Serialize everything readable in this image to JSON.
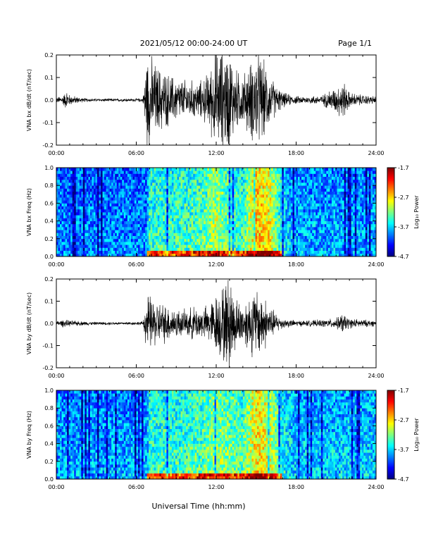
{
  "header": {
    "title": "2021/05/12  00:00-24:00 UT",
    "page": "Page 1/1"
  },
  "xlabel": "Universal Time (hh:mm)",
  "x_ticks": [
    "00:00",
    "06:00",
    "12:00",
    "18:00",
    "24:00"
  ],
  "colorbar": {
    "label": "Log₁₀ Power",
    "ticks": [
      "-1.7",
      "-2.7",
      "-3.7",
      "-4.7"
    ],
    "range": [
      -4.7,
      -1.7
    ]
  },
  "colors": {
    "trace": "#000000",
    "axis": "#000000"
  },
  "chart_data": [
    {
      "type": "line",
      "title": "",
      "ylabel": "VNA bx dB/dt (nT/sec)",
      "xlim": [
        0,
        24
      ],
      "ylim": [
        -0.2,
        0.2
      ],
      "y_ticks": [
        "-0.2",
        "-0.1",
        "0.0",
        "0.1",
        "0.2"
      ],
      "series": [
        {
          "x": [
            0,
            0.5,
            0.8,
            1.0,
            2.0,
            3.0,
            4.0,
            5.0,
            6.0,
            6.5,
            6.8,
            7.0,
            7.5,
            8.0,
            8.5,
            9.0,
            9.5,
            10.0,
            10.5,
            11.0,
            11.5,
            12.0,
            12.5,
            13.0,
            13.5,
            14.0,
            14.5,
            15.0,
            15.5,
            16.0,
            16.5,
            17.0,
            18.0,
            19.0,
            20.0,
            20.5,
            21.0,
            21.5,
            22.0,
            23.0,
            24.0
          ],
          "amplitude": [
            0.01,
            0.02,
            0.04,
            0.02,
            0.008,
            0.006,
            0.006,
            0.006,
            0.006,
            0.008,
            0.2,
            0.18,
            0.14,
            0.12,
            0.1,
            0.09,
            0.08,
            0.08,
            0.07,
            0.08,
            0.12,
            0.2,
            0.2,
            0.2,
            0.12,
            0.1,
            0.14,
            0.2,
            0.16,
            0.1,
            0.06,
            0.03,
            0.015,
            0.015,
            0.02,
            0.04,
            0.05,
            0.08,
            0.03,
            0.02,
            0.015
          ]
        }
      ]
    },
    {
      "type": "heatmap",
      "title": "",
      "ylabel": "VNA bx Freq (Hz)",
      "xlim": [
        0,
        24
      ],
      "ylim": [
        0,
        1.0
      ],
      "y_ticks": [
        "0.0",
        "0.2",
        "0.4",
        "0.6",
        "0.8",
        "1.0"
      ],
      "activity": {
        "x": [
          0,
          6.8,
          7.0,
          9.0,
          11.0,
          12.0,
          13.0,
          14.0,
          15.0,
          16.0,
          17.0,
          18.0,
          24.0
        ],
        "level": [
          -3.9,
          -3.9,
          -3.4,
          -3.4,
          -3.3,
          -3.0,
          -3.3,
          -3.4,
          -2.6,
          -2.8,
          -3.6,
          -3.8,
          -3.8
        ]
      }
    },
    {
      "type": "line",
      "title": "",
      "ylabel": "VNA by dB/dt (nT/sec)",
      "xlim": [
        0,
        24
      ],
      "ylim": [
        -0.2,
        0.2
      ],
      "y_ticks": [
        "-0.2",
        "-0.1",
        "0.0",
        "0.1",
        "0.2"
      ],
      "series": [
        {
          "x": [
            0,
            0.5,
            1.0,
            2.0,
            3.0,
            4.0,
            5.0,
            6.0,
            6.5,
            6.8,
            7.0,
            7.5,
            8.0,
            8.5,
            9.0,
            9.5,
            10.0,
            10.5,
            11.0,
            11.5,
            12.0,
            12.5,
            13.0,
            13.5,
            14.0,
            14.5,
            15.0,
            15.5,
            16.0,
            16.5,
            17.0,
            18.0,
            19.0,
            20.0,
            21.0,
            21.5,
            22.0,
            23.0,
            24.0
          ],
          "amplitude": [
            0.01,
            0.015,
            0.012,
            0.008,
            0.006,
            0.006,
            0.006,
            0.006,
            0.008,
            0.12,
            0.11,
            0.09,
            0.08,
            0.07,
            0.06,
            0.05,
            0.06,
            0.07,
            0.06,
            0.08,
            0.12,
            0.15,
            0.2,
            0.1,
            0.08,
            0.12,
            0.14,
            0.12,
            0.07,
            0.04,
            0.02,
            0.012,
            0.012,
            0.015,
            0.02,
            0.04,
            0.02,
            0.015,
            0.012
          ]
        }
      ]
    },
    {
      "type": "heatmap",
      "title": "",
      "ylabel": "VNA by Freq (Hz)",
      "xlim": [
        0,
        24
      ],
      "ylim": [
        0,
        1.0
      ],
      "y_ticks": [
        "0.0",
        "0.2",
        "0.4",
        "0.6",
        "0.8",
        "1.0"
      ],
      "activity": {
        "x": [
          0,
          6.8,
          7.0,
          9.0,
          11.0,
          12.0,
          13.0,
          14.0,
          15.0,
          16.0,
          17.0,
          18.0,
          24.0
        ],
        "level": [
          -3.8,
          -3.8,
          -3.4,
          -3.4,
          -3.3,
          -3.1,
          -3.2,
          -3.3,
          -2.7,
          -2.9,
          -3.5,
          -3.7,
          -3.7
        ]
      }
    }
  ]
}
